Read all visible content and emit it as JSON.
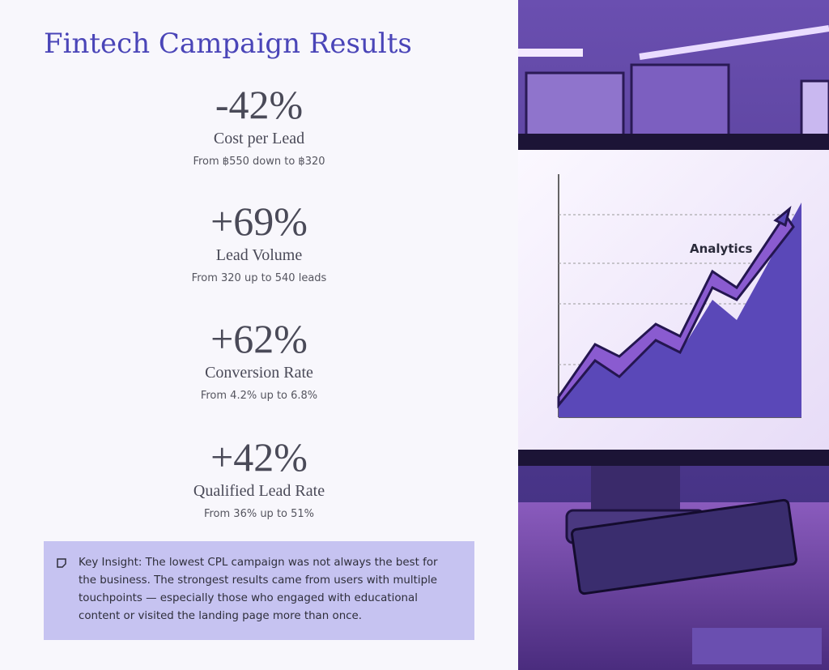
{
  "title": "Fintech Campaign Results",
  "metrics": [
    {
      "value": "-42%",
      "label": "Cost per Lead",
      "detail": "From ฿550 down to ฿320"
    },
    {
      "value": "+69%",
      "label": "Lead Volume",
      "detail": "From 320 up to 540 leads"
    },
    {
      "value": "+62%",
      "label": "Conversion Rate",
      "detail": "From 4.2% up to 6.8%"
    },
    {
      "value": "+42%",
      "label": "Qualified Lead Rate",
      "detail": "From 36% up to 51%"
    }
  ],
  "insight": {
    "text": "Key Insight: The lowest CPL campaign was not always the best for the business. The strongest results came from users with multiple touchpoints — especially those who engaged with educational content or visited the landing page more than once."
  },
  "illustration": {
    "label": "Analytics"
  }
}
